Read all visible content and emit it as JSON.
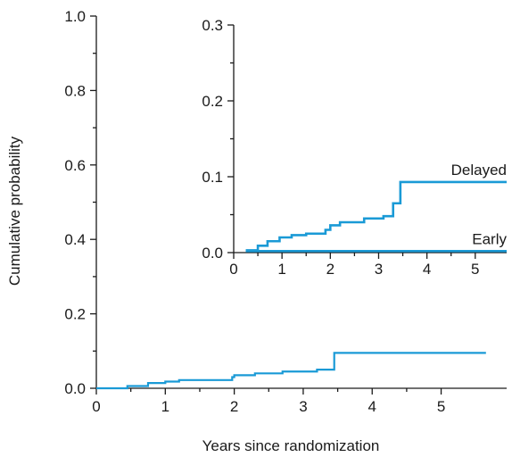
{
  "chart_data": [
    {
      "id": "main",
      "type": "line",
      "step": true,
      "xlabel": "Years since randomization",
      "ylabel": "Cumulative probability",
      "xlim": [
        0,
        5.95
      ],
      "ylim": [
        0,
        1.0
      ],
      "xticks": [
        0,
        1,
        2,
        3,
        4,
        5
      ],
      "xtick_labels": [
        "0",
        "1",
        "2",
        "3",
        "4",
        "5"
      ],
      "yticks": [
        0,
        0.2,
        0.4,
        0.6,
        0.8,
        1.0
      ],
      "ytick_labels": [
        "0.0",
        "0.2",
        "0.4",
        "0.6",
        "0.8",
        "1.0"
      ],
      "series": [
        {
          "color": "#1a9ad6",
          "points": [
            [
              0,
              0
            ],
            [
              0.45,
              0.006
            ],
            [
              0.75,
              0.014
            ],
            [
              1.0,
              0.018
            ],
            [
              1.2,
              0.022
            ],
            [
              1.97,
              0.03
            ],
            [
              2.0,
              0.035
            ],
            [
              2.3,
              0.04
            ],
            [
              2.7,
              0.045
            ],
            [
              3.2,
              0.05
            ],
            [
              3.45,
              0.095
            ],
            [
              5.65,
              0.095
            ]
          ]
        }
      ]
    },
    {
      "id": "inset",
      "type": "line",
      "step": true,
      "xlim": [
        0,
        5.65
      ],
      "ylim": [
        0,
        0.3
      ],
      "xticks": [
        0,
        1,
        2,
        3,
        4,
        5
      ],
      "xtick_labels": [
        "0",
        "1",
        "2",
        "3",
        "4",
        "5"
      ],
      "yticks": [
        0,
        0.1,
        0.2,
        0.3
      ],
      "ytick_labels": [
        "0.0",
        "0.1",
        "0.2",
        "0.3"
      ],
      "series": [
        {
          "name": "Delayed",
          "color": "#1a9ad6",
          "points": [
            [
              0.25,
              0.003
            ],
            [
              0.5,
              0.009
            ],
            [
              0.7,
              0.015
            ],
            [
              0.95,
              0.02
            ],
            [
              1.2,
              0.023
            ],
            [
              1.5,
              0.025
            ],
            [
              1.9,
              0.03
            ],
            [
              2.0,
              0.036
            ],
            [
              2.2,
              0.04
            ],
            [
              2.7,
              0.045
            ],
            [
              3.1,
              0.048
            ],
            [
              3.3,
              0.065
            ],
            [
              3.45,
              0.093
            ],
            [
              5.65,
              0.093
            ]
          ]
        },
        {
          "name": "Early",
          "color": "#1a9ad6",
          "points": [
            [
              0.25,
              0.002
            ],
            [
              5.65,
              0.002
            ]
          ]
        }
      ]
    }
  ]
}
